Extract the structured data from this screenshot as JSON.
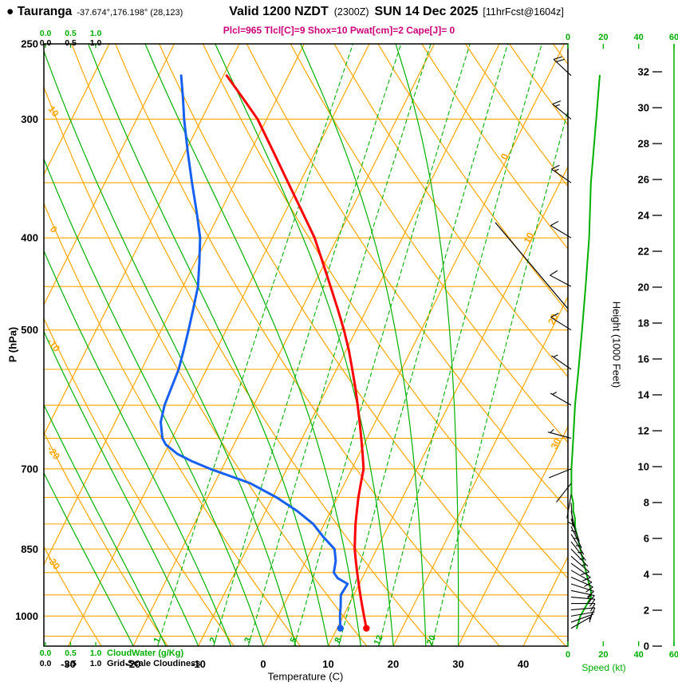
{
  "header": {
    "bullet": "●",
    "station": "Tauranga",
    "coords": "-37.674°,176.198° (28,123)",
    "valid": "Valid 1200 NZDT",
    "valid_z": "(2300Z)",
    "date": "SUN 14 Dec 2025",
    "fcst": "[11hrFcst@1604z]",
    "params": "Plcl=965 Tlcl[C]=9 Shox=10 Pwat[cm]=2 Cape[J]= 0"
  },
  "axes": {
    "pressure_label": "P (hPa)",
    "pressure_ticks": [
      250,
      300,
      400,
      500,
      700,
      850,
      1000
    ],
    "temp_label": "Temperature (C)",
    "temp_ticks": [
      -30,
      -20,
      -10,
      0,
      10,
      20,
      30,
      40
    ],
    "height_label": "Height (1000 Feet)",
    "height_ticks": [
      0,
      2,
      4,
      6,
      8,
      10,
      12,
      14,
      16,
      18,
      20,
      22,
      24,
      26,
      28,
      30,
      32
    ],
    "speed_label": "Speed (kt)",
    "speed_ticks": [
      0,
      20,
      40,
      60
    ],
    "cloudwater_label": "CloudWater (g/Kg)",
    "cloudwater_ticks": [
      "0.0",
      "0.5",
      "1.0"
    ],
    "cloudiness_label": "Grid-Scale Cloudiness",
    "cloudiness_ticks": [
      "0.0",
      "0.5",
      "1.0"
    ]
  },
  "chart_data": {
    "type": "line",
    "subtype": "skew-t-log-p-sounding",
    "pressure_range_hpa": [
      250,
      1075
    ],
    "isobar_lines_hpa": [
      300,
      350,
      400,
      450,
      500,
      550,
      600,
      650,
      700,
      750,
      800,
      850,
      900,
      950,
      1000,
      1050
    ],
    "isotherm_lines_c": {
      "min": -80,
      "max": 40,
      "step": 10
    },
    "isotherm_labels_c": [
      0,
      10,
      20,
      30
    ],
    "dry_adiabats_theta_c": {
      "min": -40,
      "max": 130,
      "step": 10
    },
    "dry_adiabat_labels_c": [
      10,
      0,
      -10,
      -20,
      -30
    ],
    "moist_adiabat_starts_c": [
      -20,
      -15,
      -10,
      -5,
      0,
      5,
      10,
      15,
      20,
      25,
      30
    ],
    "mixing_ratio_lines_gkg": [
      1,
      2,
      3,
      5,
      8,
      12,
      20
    ],
    "temperature_profile": {
      "pressure_hpa": [
        1030,
        1000,
        975,
        950,
        925,
        900,
        875,
        850,
        825,
        800,
        775,
        750,
        725,
        700,
        675,
        650,
        625,
        600,
        575,
        550,
        525,
        500,
        475,
        450,
        425,
        400,
        375,
        350,
        325,
        300,
        285,
        270
      ],
      "temp_c": [
        14.5,
        13.2,
        12.1,
        11.0,
        9.9,
        8.8,
        7.7,
        6.6,
        5.7,
        4.8,
        4.0,
        3.2,
        2.5,
        1.8,
        0.5,
        -0.9,
        -2.4,
        -4.0,
        -5.7,
        -7.6,
        -9.6,
        -11.9,
        -14.5,
        -17.3,
        -20.3,
        -23.5,
        -27.5,
        -31.8,
        -36.4,
        -41.4,
        -45.3,
        -49.5
      ]
    },
    "dewpoint_profile": {
      "pressure_hpa": [
        1030,
        1000,
        975,
        950,
        925,
        912,
        900,
        875,
        850,
        825,
        800,
        775,
        750,
        725,
        700,
        688,
        675,
        660,
        650,
        625,
        600,
        575,
        550,
        525,
        500,
        475,
        450,
        425,
        400,
        375,
        350,
        325,
        300,
        285,
        270
      ],
      "dewpoint_c": [
        10.5,
        9.5,
        8.8,
        8.0,
        8.2,
        6.2,
        5.2,
        4.6,
        3.5,
        0.8,
        -1.7,
        -5.2,
        -9.4,
        -14.5,
        -21.8,
        -25.0,
        -28.0,
        -30.5,
        -31.5,
        -33.0,
        -33.7,
        -34.0,
        -34.3,
        -35.0,
        -35.8,
        -36.7,
        -37.7,
        -39.3,
        -41.1,
        -43.7,
        -46.6,
        -49.6,
        -52.7,
        -54.5,
        -56.5
      ]
    },
    "surface_dots": {
      "pressure_hpa": 1030,
      "temp_c": 14.5,
      "dewpoint_c": 10.5
    },
    "wind_profile_kt": [
      {
        "p": 1030,
        "spd": 5,
        "dir": 60
      },
      {
        "p": 1015,
        "spd": 6,
        "dir": 70
      },
      {
        "p": 1000,
        "spd": 7,
        "dir": 80
      },
      {
        "p": 985,
        "spd": 9,
        "dir": 85
      },
      {
        "p": 970,
        "spd": 11,
        "dir": 90
      },
      {
        "p": 955,
        "spd": 13,
        "dir": 95
      },
      {
        "p": 940,
        "spd": 13,
        "dir": 102
      },
      {
        "p": 925,
        "spd": 12,
        "dir": 108
      },
      {
        "p": 910,
        "spd": 11,
        "dir": 114
      },
      {
        "p": 895,
        "spd": 10,
        "dir": 120
      },
      {
        "p": 880,
        "spd": 9,
        "dir": 126
      },
      {
        "p": 865,
        "spd": 8,
        "dir": 131
      },
      {
        "p": 850,
        "spd": 7,
        "dir": 136
      },
      {
        "p": 835,
        "spd": 6,
        "dir": 142
      },
      {
        "p": 820,
        "spd": 5,
        "dir": 148
      },
      {
        "p": 805,
        "spd": 4,
        "dir": 154
      },
      {
        "p": 790,
        "spd": 4,
        "dir": 160
      },
      {
        "p": 775,
        "spd": 3,
        "dir": 168
      },
      {
        "p": 760,
        "spd": 3,
        "dir": 176
      },
      {
        "p": 745,
        "spd": 2,
        "dir": 190
      },
      {
        "p": 725,
        "spd": 2,
        "dir": 218
      },
      {
        "p": 700,
        "spd": 2,
        "dir": 248
      },
      {
        "p": 650,
        "spd": 3,
        "dir": 285
      },
      {
        "p": 600,
        "spd": 4,
        "dir": 300
      },
      {
        "p": 550,
        "spd": 6,
        "dir": 305
      },
      {
        "p": 500,
        "spd": 8,
        "dir": 302
      },
      {
        "p": 450,
        "spd": 10,
        "dir": 298
      },
      {
        "p": 400,
        "spd": 12,
        "dir": 301
      },
      {
        "p": 350,
        "spd": 13,
        "dir": 305
      },
      {
        "p": 300,
        "spd": 16,
        "dir": 309
      },
      {
        "p": 270,
        "spd": 18,
        "dir": 313
      }
    ],
    "colors": {
      "orange": "#FFA500",
      "green": "#00B000",
      "green_text": "#00AE00",
      "red": "#FF0000",
      "blue": "#1560F0",
      "magenta": "#CC0077",
      "black": "#000000"
    }
  }
}
